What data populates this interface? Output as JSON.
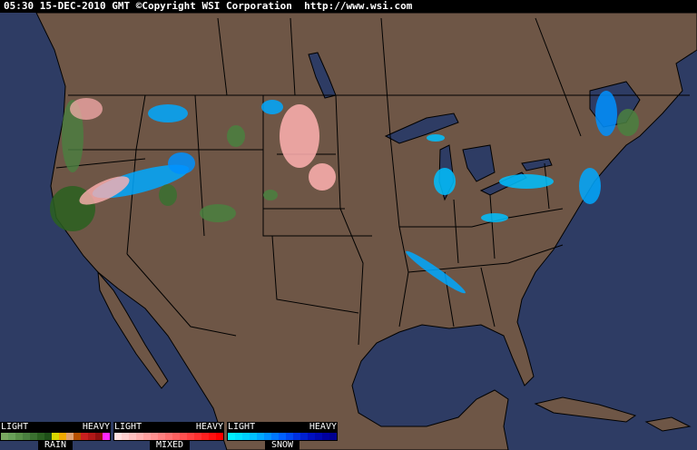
{
  "header": {
    "text": "05:30 15-DEC-2010 GMT ©Copyright WSI Corporation  http://www.wsi.com"
  },
  "colors": {
    "ocean": "#2e3c64",
    "land": "#6e5646",
    "border": "#000000"
  },
  "legend": [
    {
      "name": "RAIN",
      "light": "LIGHT",
      "heavy": "HEAVY",
      "colors": [
        "#78a860",
        "#68a058",
        "#589048",
        "#4a8040",
        "#3a7030",
        "#2a6020",
        "#1e5018",
        "#d8d800",
        "#f0a800",
        "#e0a070",
        "#b85000",
        "#c82020",
        "#b01818",
        "#901010",
        "#ff28ff"
      ]
    },
    {
      "name": "MIXED",
      "light": "LIGHT",
      "heavy": "HEAVY",
      "colors": [
        "#ffe0e0",
        "#ffd0d0",
        "#ffc0c0",
        "#ffb0b0",
        "#ffa0a0",
        "#ff9090",
        "#ff8080",
        "#ff7070",
        "#ff6060",
        "#ff5050",
        "#ff4040",
        "#ff3030",
        "#ff2020",
        "#ff1010",
        "#ff0000"
      ]
    },
    {
      "name": "SNOW",
      "light": "LIGHT",
      "heavy": "HEAVY",
      "colors": [
        "#00f0ff",
        "#00e0ff",
        "#00d0ff",
        "#00c0ff",
        "#00a8ff",
        "#0090ff",
        "#0078ff",
        "#0060ff",
        "#0048f0",
        "#0030e0",
        "#0020d0",
        "#0010c0",
        "#0008b0",
        "#0000a0",
        "#000090"
      ]
    }
  ]
}
